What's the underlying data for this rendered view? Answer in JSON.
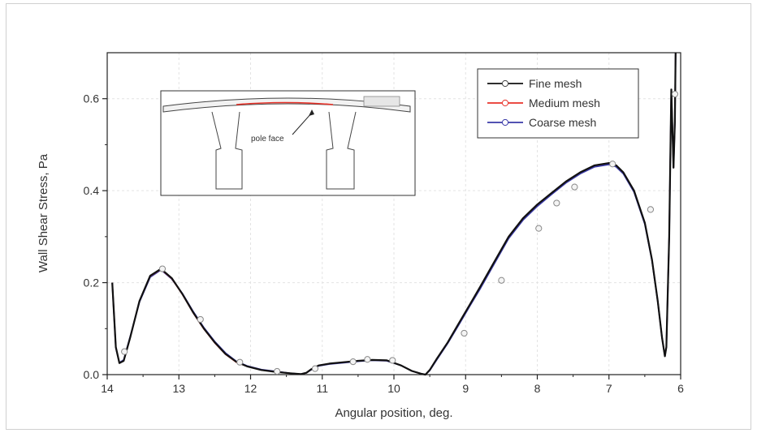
{
  "chart_data": {
    "type": "line",
    "title": "",
    "xlabel": "Angular position, deg.",
    "ylabel": "Wall Shear Stress, Pa",
    "xlim": [
      14,
      6
    ],
    "ylim": [
      0,
      0.7
    ],
    "x_reversed": true,
    "x_ticks": [
      14,
      13,
      12,
      11,
      10,
      9,
      8,
      7,
      6
    ],
    "y_ticks": [
      0.0,
      0.2,
      0.4,
      0.6
    ],
    "x_tick_labels": [
      "14",
      "13",
      "12",
      "11",
      "10",
      "9",
      "8",
      "7",
      "6"
    ],
    "y_tick_labels": [
      "0.0",
      "0.2",
      "0.4",
      "0.6"
    ],
    "grid": true,
    "legend_position": "top-right",
    "series": [
      {
        "name": "Fine mesh",
        "color": "#111111",
        "x": [
          13.93,
          13.88,
          13.83,
          13.77,
          13.68,
          13.55,
          13.4,
          13.25,
          13.1,
          12.95,
          12.8,
          12.65,
          12.5,
          12.35,
          12.2,
          12.05,
          11.85,
          11.65,
          11.45,
          11.3,
          11.22,
          11.15,
          11.05,
          10.9,
          10.7,
          10.5,
          10.3,
          10.1,
          9.9,
          9.75,
          9.62,
          9.56,
          9.5,
          9.4,
          9.25,
          9.1,
          8.95,
          8.8,
          8.6,
          8.4,
          8.2,
          8.0,
          7.8,
          7.6,
          7.4,
          7.2,
          7.0,
          6.9,
          6.8,
          6.65,
          6.5,
          6.4,
          6.32,
          6.26,
          6.22,
          6.2,
          6.16,
          6.13,
          6.1,
          6.08,
          6.07
        ],
        "y": [
          0.2,
          0.06,
          0.025,
          0.03,
          0.08,
          0.16,
          0.215,
          0.23,
          0.21,
          0.175,
          0.135,
          0.1,
          0.07,
          0.045,
          0.028,
          0.018,
          0.01,
          0.006,
          0.003,
          0.001,
          0.004,
          0.012,
          0.02,
          0.024,
          0.027,
          0.03,
          0.032,
          0.031,
          0.02,
          0.008,
          0.002,
          0.0,
          0.01,
          0.035,
          0.07,
          0.11,
          0.15,
          0.19,
          0.245,
          0.3,
          0.34,
          0.37,
          0.395,
          0.42,
          0.44,
          0.455,
          0.46,
          0.455,
          0.44,
          0.4,
          0.33,
          0.25,
          0.16,
          0.08,
          0.04,
          0.06,
          0.3,
          0.62,
          0.45,
          0.55,
          0.7
        ]
      },
      {
        "name": "Medium mesh",
        "color": "#e8332a",
        "x": [
          13.93,
          13.88,
          13.83,
          13.77,
          13.68,
          13.55,
          13.4,
          13.25,
          13.1,
          12.95,
          12.8,
          12.65,
          12.5,
          12.35,
          12.2,
          12.05,
          11.85,
          11.65,
          11.45,
          11.3,
          11.22,
          11.15,
          11.05,
          10.9,
          10.7,
          10.5,
          10.3,
          10.1,
          9.9,
          9.75,
          9.62,
          9.56,
          9.5,
          9.4,
          9.25,
          9.1,
          8.95,
          8.8,
          8.6,
          8.4,
          8.2,
          8.0,
          7.8,
          7.6,
          7.4,
          7.2,
          7.0,
          6.9,
          6.8,
          6.65,
          6.5,
          6.4,
          6.32,
          6.26,
          6.22,
          6.2,
          6.16,
          6.13,
          6.1,
          6.08,
          6.07
        ],
        "y": [
          0.2,
          0.06,
          0.025,
          0.03,
          0.08,
          0.16,
          0.214,
          0.229,
          0.209,
          0.174,
          0.134,
          0.099,
          0.069,
          0.044,
          0.027,
          0.018,
          0.01,
          0.006,
          0.003,
          0.001,
          0.004,
          0.012,
          0.02,
          0.024,
          0.027,
          0.03,
          0.032,
          0.031,
          0.02,
          0.008,
          0.002,
          0.0,
          0.01,
          0.035,
          0.07,
          0.11,
          0.15,
          0.19,
          0.245,
          0.3,
          0.34,
          0.37,
          0.395,
          0.42,
          0.44,
          0.455,
          0.46,
          0.455,
          0.44,
          0.4,
          0.33,
          0.25,
          0.16,
          0.08,
          0.04,
          0.06,
          0.3,
          0.62,
          0.45,
          0.55,
          0.7
        ]
      },
      {
        "name": "Coarse mesh",
        "color": "#3a3aa8",
        "x": [
          13.93,
          13.88,
          13.83,
          13.77,
          13.68,
          13.55,
          13.4,
          13.25,
          13.1,
          12.95,
          12.8,
          12.65,
          12.5,
          12.35,
          12.2,
          12.05,
          11.85,
          11.65,
          11.45,
          11.3,
          11.22,
          11.15,
          11.05,
          10.9,
          10.7,
          10.5,
          10.3,
          10.1,
          9.9,
          9.75,
          9.62,
          9.56,
          9.5,
          9.4,
          9.25,
          9.1,
          8.95,
          8.8,
          8.6,
          8.4,
          8.2,
          8.0,
          7.8,
          7.6,
          7.4,
          7.2,
          7.0,
          6.9,
          6.8,
          6.65,
          6.5,
          6.4,
          6.32,
          6.26,
          6.22,
          6.2,
          6.16,
          6.13,
          6.1,
          6.08,
          6.07
        ],
        "y": [
          0.2,
          0.058,
          0.026,
          0.032,
          0.082,
          0.158,
          0.212,
          0.228,
          0.208,
          0.176,
          0.137,
          0.102,
          0.072,
          0.047,
          0.029,
          0.019,
          0.011,
          0.007,
          0.003,
          0.001,
          0.004,
          0.011,
          0.019,
          0.023,
          0.026,
          0.029,
          0.031,
          0.03,
          0.02,
          0.008,
          0.002,
          0.0,
          0.009,
          0.033,
          0.068,
          0.107,
          0.147,
          0.186,
          0.241,
          0.296,
          0.336,
          0.366,
          0.392,
          0.417,
          0.437,
          0.452,
          0.457,
          0.452,
          0.437,
          0.397,
          0.327,
          0.248,
          0.159,
          0.08,
          0.04,
          0.06,
          0.3,
          0.62,
          0.45,
          0.55,
          0.7
        ]
      }
    ],
    "markers": {
      "x": [
        13.76,
        13.23,
        12.7,
        12.15,
        11.63,
        11.1,
        10.57,
        10.37,
        10.02,
        9.02,
        8.5,
        7.98,
        7.73,
        7.48,
        6.95,
        6.42,
        6.08
      ],
      "y": [
        0.05,
        0.23,
        0.12,
        0.027,
        0.007,
        0.013,
        0.028,
        0.033,
        0.031,
        0.09,
        0.205,
        0.318,
        0.373,
        0.408,
        0.458,
        0.359,
        0.61
      ]
    },
    "inset": {
      "label": "pole face"
    }
  }
}
